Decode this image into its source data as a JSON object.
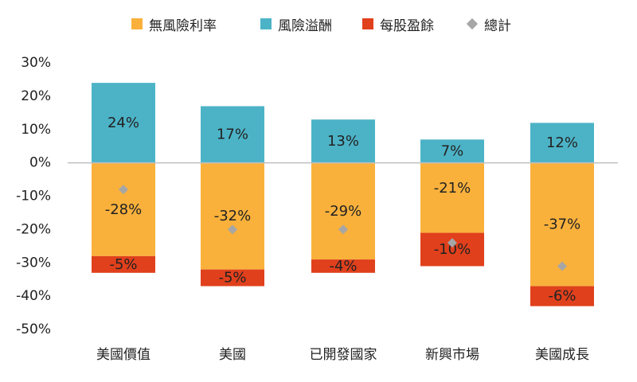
{
  "chart_data": {
    "type": "bar",
    "stacked": true,
    "title": "",
    "xlabel": "",
    "ylabel": "",
    "ylim": [
      -50,
      30
    ],
    "yticks": [
      30,
      20,
      10,
      0,
      -10,
      -20,
      -30,
      -40,
      -50
    ],
    "ytick_labels": [
      "30%",
      "20%",
      "10%",
      "0%",
      "-10%",
      "-20%",
      "-30%",
      "-40%",
      "-50%"
    ],
    "grid": false,
    "legend_position": "top",
    "categories": [
      "美國價值",
      "美國",
      "已開發國家",
      "新興市場",
      "美國成長"
    ],
    "series": [
      {
        "name": "無風險利率",
        "color": "#f9b13c",
        "values": [
          -28,
          -32,
          -29,
          -21,
          -37
        ],
        "labels": [
          "-28%",
          "-32%",
          "-29%",
          "-21%",
          "-37%"
        ]
      },
      {
        "name": "風險溢酬",
        "color": "#4cb3c7",
        "values": [
          24,
          17,
          13,
          7,
          12
        ],
        "labels": [
          "24%",
          "17%",
          "13%",
          "7%",
          "12%"
        ]
      },
      {
        "name": "每股盈餘",
        "color": "#e0401c",
        "values": [
          -5,
          -5,
          -4,
          -10,
          -6
        ],
        "labels": [
          "-5%",
          "-5%",
          "-4%",
          "-10%",
          "-6%"
        ]
      }
    ],
    "total": {
      "name": "總計",
      "color": "#a6a6a6",
      "marker": "diamond",
      "values": [
        -8,
        -20,
        -20,
        -24,
        -31
      ]
    }
  }
}
